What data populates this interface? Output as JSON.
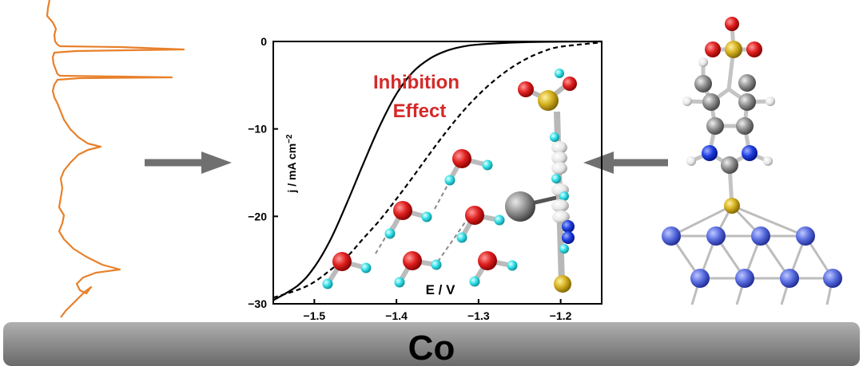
{
  "substrate": {
    "label": "Co",
    "color": "#8c8c8c"
  },
  "annotation": {
    "line1": "Inhibition",
    "line2": "Effect",
    "color": "#d42a2a"
  },
  "chart_data": {
    "type": "line",
    "xlabel": "E / V",
    "ylabel": "j / mA cm-2",
    "xlim": [
      -1.55,
      -1.15
    ],
    "ylim": [
      -30,
      0
    ],
    "x_ticks": [
      -1.5,
      -1.4,
      -1.3,
      -1.2
    ],
    "y_ticks": [
      0,
      -10,
      -20,
      -30
    ],
    "x_tick_labels": [
      "−1.5",
      "−1.4",
      "−1.3",
      "−1.2"
    ],
    "y_tick_labels": [
      "0",
      "−10",
      "−20",
      "−30"
    ],
    "series": [
      {
        "style": "solid",
        "x": [
          -1.55,
          -1.52,
          -1.5,
          -1.48,
          -1.46,
          -1.44,
          -1.42,
          -1.4,
          -1.38,
          -1.36,
          -1.34,
          -1.32,
          -1.3,
          -1.25,
          -1.2,
          -1.15
        ],
        "y": [
          -29.6,
          -27.9,
          -25.8,
          -22.6,
          -18.4,
          -13.9,
          -9.6,
          -6.0,
          -3.5,
          -2.0,
          -1.1,
          -0.6,
          -0.35,
          -0.1,
          -0.03,
          0
        ]
      },
      {
        "style": "dashed",
        "x": [
          -1.55,
          -1.52,
          -1.5,
          -1.48,
          -1.46,
          -1.44,
          -1.42,
          -1.4,
          -1.38,
          -1.36,
          -1.34,
          -1.32,
          -1.3,
          -1.28,
          -1.26,
          -1.24,
          -1.22,
          -1.2,
          -1.15
        ],
        "y": [
          -29.3,
          -28.4,
          -27.5,
          -26.1,
          -24.6,
          -22.5,
          -20.4,
          -18.0,
          -15.5,
          -12.9,
          -10.4,
          -8.1,
          -6.1,
          -4.4,
          -3.0,
          -1.9,
          -1.1,
          -0.6,
          -0.1
        ]
      }
    ]
  },
  "colors": {
    "spectrum": "#e8802a",
    "arrow": "#707070",
    "oxygen": "#e02020",
    "hydrogen": "#30e0e8",
    "sulfur": "#d4b020",
    "nitrogen": "#2040e0",
    "carbon": "#909090",
    "cobalt": "#5a6ee0"
  }
}
